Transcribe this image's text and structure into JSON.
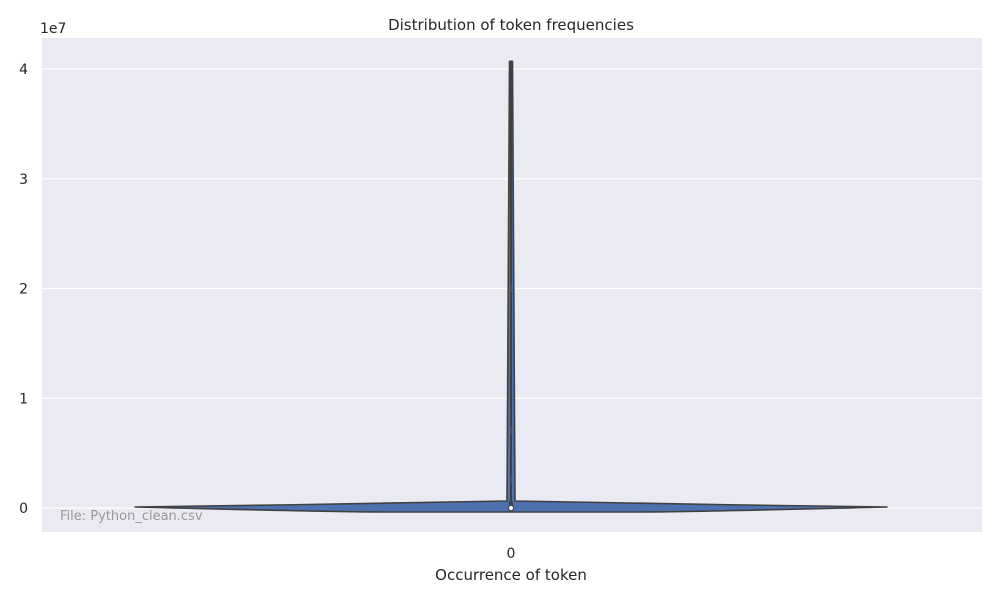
{
  "chart_data": {
    "type": "violin",
    "title": "Distribution of token frequencies",
    "xlabel": "Occurrence of token",
    "ylabel": "",
    "categories": [
      "0"
    ],
    "y_ticks": [
      0,
      1,
      2,
      3,
      4
    ],
    "y_tick_labels": [
      "0",
      "1",
      "2",
      "3",
      "4"
    ],
    "y_offset_label": "1e7",
    "ylim": [
      -2000000,
      42700000
    ],
    "grid": true,
    "annotation": "File: Python_clean.csv",
    "violin": {
      "max": 40700000,
      "median": 0,
      "body_color": "#4c72b0",
      "outline_color": "#404040",
      "density_profile": [
        {
          "y": -250000,
          "w": 0.8
        },
        {
          "y": 0,
          "w": 1.0
        },
        {
          "y": 150000,
          "w": 1.0
        },
        {
          "y": 350000,
          "w": 0.55
        },
        {
          "y": 600000,
          "w": 0.01
        },
        {
          "y": 2600000,
          "w": 0.004
        },
        {
          "y": 7100000,
          "w": 0.002
        },
        {
          "y": 40700000,
          "w": 0.002
        }
      ]
    },
    "colors": {
      "background": "#eaeaf2",
      "grid": "#ffffff"
    }
  }
}
